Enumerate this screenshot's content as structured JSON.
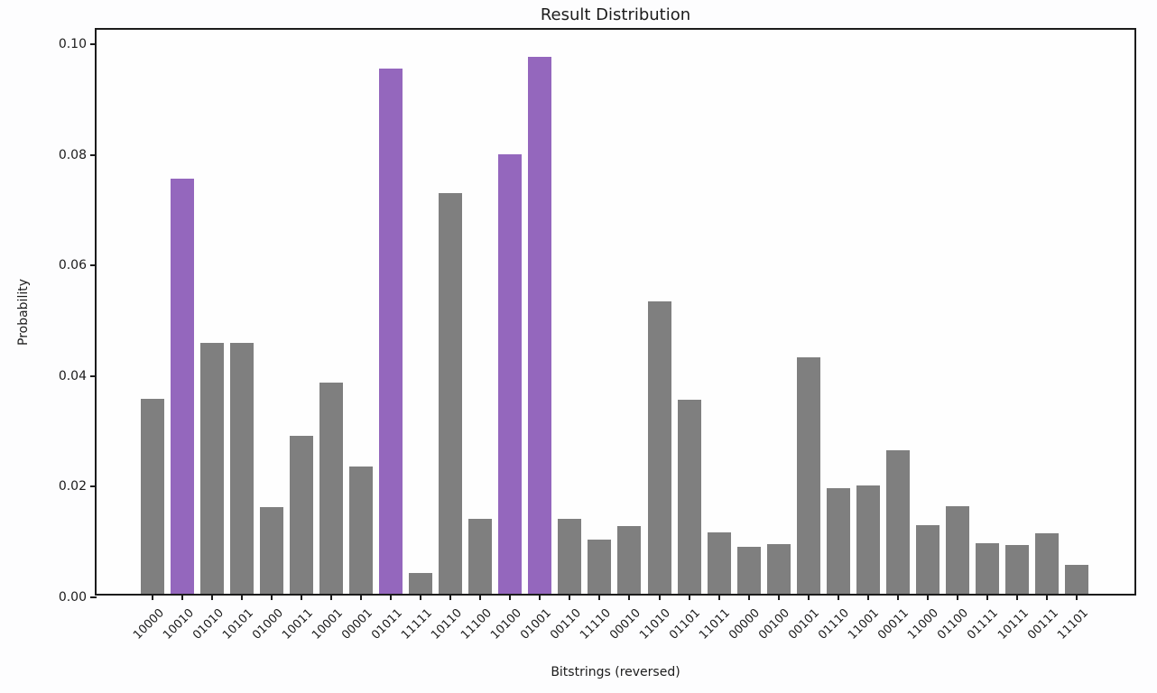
{
  "figure": {
    "title": "Result Distribution",
    "xlabel": "Bitstrings (reversed)",
    "ylabel": "Probability"
  },
  "chart_data": {
    "type": "bar",
    "title": "Result Distribution",
    "xlabel": "Bitstrings (reversed)",
    "ylabel": "Probability",
    "categories": [
      "10000",
      "10010",
      "01010",
      "10101",
      "01000",
      "10011",
      "10001",
      "00001",
      "01011",
      "11111",
      "10110",
      "11100",
      "10100",
      "01001",
      "00110",
      "11110",
      "00010",
      "11010",
      "01101",
      "11011",
      "00000",
      "00100",
      "00101",
      "01110",
      "11001",
      "00011",
      "11000",
      "01100",
      "01111",
      "10111",
      "00111",
      "11101"
    ],
    "values": [
      0.0352,
      0.075,
      0.0453,
      0.0453,
      0.0156,
      0.0285,
      0.0381,
      0.023,
      0.095,
      0.0038,
      0.0725,
      0.0135,
      0.0795,
      0.0971,
      0.0136,
      0.0098,
      0.0123,
      0.0529,
      0.035,
      0.0111,
      0.0085,
      0.009,
      0.0427,
      0.0191,
      0.0195,
      0.026,
      0.0124,
      0.0159,
      0.0091,
      0.0088,
      0.011,
      0.0052
    ],
    "highlighted_categories": [
      "10010",
      "01011",
      "10100",
      "01001"
    ],
    "bar_color": "#7f7f7f",
    "highlight_color": "#9467bd",
    "y_ticks": [
      0.0,
      0.02,
      0.04,
      0.06,
      0.08,
      0.1
    ],
    "y_tick_labels": [
      "0.00",
      "0.02",
      "0.04",
      "0.06",
      "0.08",
      "0.10"
    ],
    "ylim": [
      0,
      0.1026
    ],
    "xlim_note": "32 bars, no grid, no legend",
    "grid": false,
    "legend": null
  }
}
